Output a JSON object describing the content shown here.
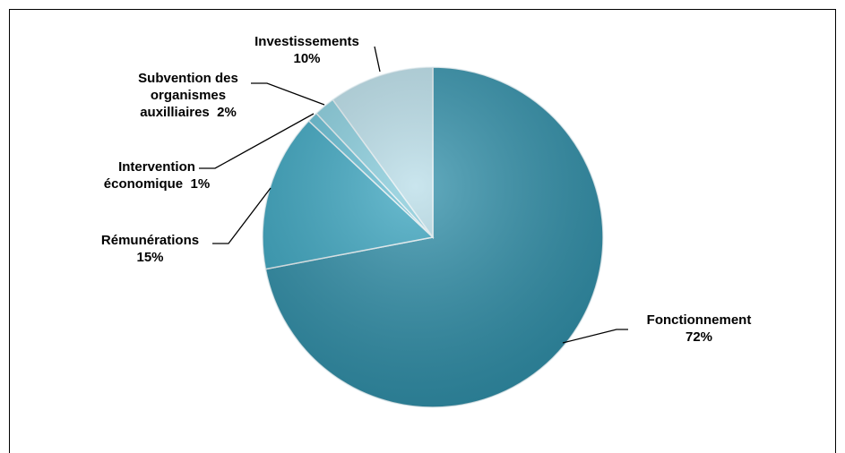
{
  "chart_data": {
    "type": "pie",
    "categories": [
      "Fonctionnement",
      "Rémunérations",
      "Intervention économique",
      "Subvention des organismes auxilliaires",
      "Investissements"
    ],
    "values": [
      72,
      15,
      1,
      2,
      10
    ],
    "value_labels": [
      "72%",
      "15%",
      "1%",
      "2%",
      "10%"
    ],
    "colors": [
      "#2f8fa9",
      "#3aa6c1",
      "#62bdd3",
      "#86cddd",
      "#b8dde8"
    ]
  }
}
